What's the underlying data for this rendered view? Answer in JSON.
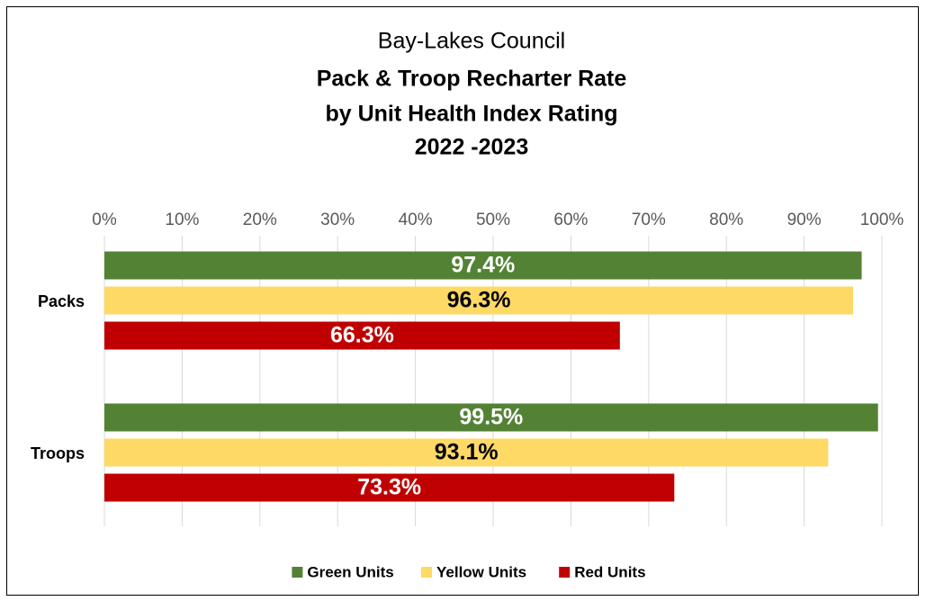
{
  "chart_data": {
    "type": "barh",
    "title": "Bay-Lakes Council",
    "subtitle": [
      "Pack & Troop Recharter Rate",
      "by Unit Health Index Rating",
      "2022 -2023"
    ],
    "categories": [
      "Packs",
      "Troops"
    ],
    "series": [
      {
        "name": "Green Units",
        "color": "#548235",
        "label_color": "#ffffff",
        "values": [
          97.4,
          99.5
        ],
        "value_labels": [
          "97.4%",
          "99.5%"
        ]
      },
      {
        "name": "Yellow Units",
        "color": "#ffd966",
        "label_color": "#000000",
        "values": [
          96.3,
          93.1
        ],
        "value_labels": [
          "96.3%",
          "93.1%"
        ]
      },
      {
        "name": "Red Units",
        "color": "#c00000",
        "label_color": "#ffffff",
        "values": [
          66.3,
          73.3
        ],
        "value_labels": [
          "66.3%",
          "73.3%"
        ]
      }
    ],
    "xlim": [
      0,
      100
    ],
    "xticks": [
      {
        "value": 0,
        "label": "0%"
      },
      {
        "value": 10,
        "label": "10%"
      },
      {
        "value": 20,
        "label": "20%"
      },
      {
        "value": 30,
        "label": "30%"
      },
      {
        "value": 40,
        "label": "40%"
      },
      {
        "value": 50,
        "label": "50%"
      },
      {
        "value": 60,
        "label": "60%"
      },
      {
        "value": 70,
        "label": "70%"
      },
      {
        "value": 80,
        "label": "80%"
      },
      {
        "value": 90,
        "label": "90%"
      },
      {
        "value": 100,
        "label": "100%"
      }
    ],
    "grid": true,
    "legend": "bottom"
  }
}
